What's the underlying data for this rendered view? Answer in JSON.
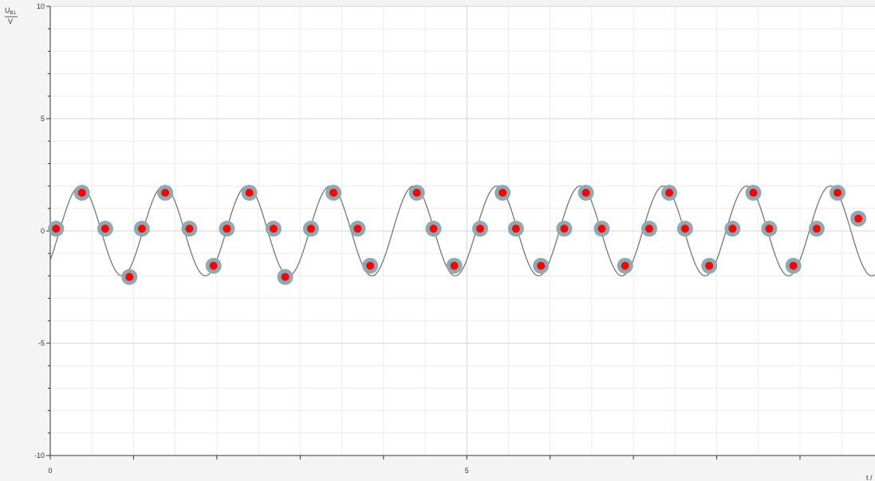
{
  "chart_data": {
    "type": "scatter",
    "title": "",
    "ylabel_symbol": "U",
    "ylabel_sub": "B1",
    "ylabel_unit": "V",
    "xlabel": "t /",
    "xlim": [
      0,
      9.9
    ],
    "ylim": [
      -10,
      10
    ],
    "x_ticks": [
      0,
      5
    ],
    "y_ticks": [
      10,
      5,
      0,
      -5,
      -10
    ],
    "x_tick_labels": [
      "0",
      "5"
    ],
    "y_tick_labels": [
      "10",
      "5",
      "0",
      "-5",
      "-10"
    ],
    "grid": true,
    "fit_curve": {
      "model": "sine",
      "amplitude": 2.0,
      "period": 1.0,
      "offset": 0.0,
      "x_start": 0.0,
      "x_end": 9.9
    },
    "series": [
      {
        "points": [
          [
            0.07,
            0.1
          ],
          [
            0.38,
            1.7
          ],
          [
            0.66,
            0.1
          ],
          [
            0.95,
            -2.05
          ],
          [
            1.1,
            0.1
          ],
          [
            1.38,
            1.7
          ],
          [
            1.67,
            0.1
          ],
          [
            1.96,
            -1.55
          ],
          [
            2.12,
            0.1
          ],
          [
            2.39,
            1.7
          ],
          [
            2.68,
            0.1
          ],
          [
            2.82,
            -2.05
          ],
          [
            3.13,
            0.1
          ],
          [
            3.4,
            1.7
          ],
          [
            3.69,
            0.1
          ],
          [
            3.84,
            -1.55
          ],
          [
            4.4,
            1.7
          ],
          [
            4.6,
            0.1
          ],
          [
            4.85,
            -1.55
          ],
          [
            5.16,
            0.1
          ],
          [
            5.43,
            1.7
          ],
          [
            5.59,
            0.1
          ],
          [
            5.89,
            -1.55
          ],
          [
            6.17,
            0.1
          ],
          [
            6.43,
            1.7
          ],
          [
            6.62,
            0.1
          ],
          [
            6.9,
            -1.55
          ],
          [
            7.19,
            0.1
          ],
          [
            7.43,
            1.7
          ],
          [
            7.62,
            0.1
          ],
          [
            7.91,
            -1.55
          ],
          [
            8.19,
            0.1
          ],
          [
            8.44,
            1.7
          ],
          [
            8.63,
            0.1
          ],
          [
            8.92,
            -1.55
          ],
          [
            9.2,
            0.1
          ],
          [
            9.45,
            1.7
          ],
          [
            9.7,
            0.55
          ]
        ]
      }
    ]
  },
  "colors": {
    "background": "#f4f4f4",
    "plot_bg": "#ffffff",
    "grid_major": "#d4d4d4",
    "grid_minor": "#ececec",
    "curve": "#777777",
    "marker_ring": "#8fa9b0",
    "marker_fill": "#ff0000",
    "axis": "#333333"
  }
}
